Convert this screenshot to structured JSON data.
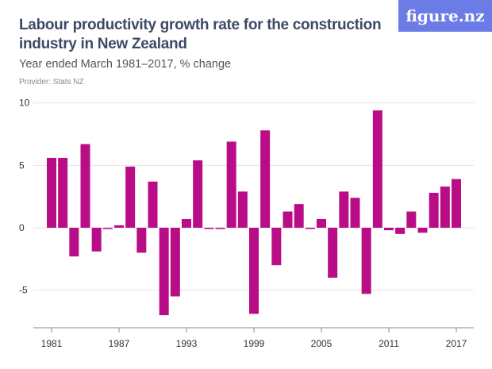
{
  "header": {
    "title": "Labour productivity growth rate for the construction industry in New Zealand",
    "subtitle": "Year ended March 1981–2017, % change",
    "provider": "Provider: Stats NZ",
    "logo": "figure.nz"
  },
  "chart_data": {
    "type": "bar",
    "title": "Labour productivity growth rate for the construction industry in New Zealand",
    "subtitle": "Year ended March 1981–2017, % change",
    "xlabel": "",
    "ylabel": "",
    "ylim": [
      -8,
      10
    ],
    "yticks": [
      10,
      5,
      0,
      -5
    ],
    "xticks": [
      "1981",
      "1987",
      "1993",
      "1999",
      "2005",
      "2011",
      "2017"
    ],
    "grid": true,
    "color": "#b90d87",
    "categories": [
      "1981",
      "1982",
      "1983",
      "1984",
      "1985",
      "1986",
      "1987",
      "1988",
      "1989",
      "1990",
      "1991",
      "1992",
      "1993",
      "1994",
      "1995",
      "1996",
      "1997",
      "1998",
      "1999",
      "2000",
      "2001",
      "2002",
      "2003",
      "2004",
      "2005",
      "2006",
      "2007",
      "2008",
      "2009",
      "2010",
      "2011",
      "2012",
      "2013",
      "2014",
      "2015",
      "2016",
      "2017"
    ],
    "values": [
      5.6,
      5.6,
      -2.3,
      6.7,
      -1.9,
      -0.1,
      0.2,
      4.9,
      -2.0,
      3.7,
      -7.0,
      -5.5,
      0.7,
      5.4,
      -0.1,
      -0.1,
      6.9,
      2.9,
      -6.9,
      7.8,
      -3.0,
      1.3,
      1.9,
      -0.1,
      0.7,
      -4.0,
      2.9,
      2.4,
      -5.3,
      9.4,
      -0.2,
      -0.5,
      1.3,
      -0.4,
      2.8,
      3.3,
      3.9
    ]
  }
}
